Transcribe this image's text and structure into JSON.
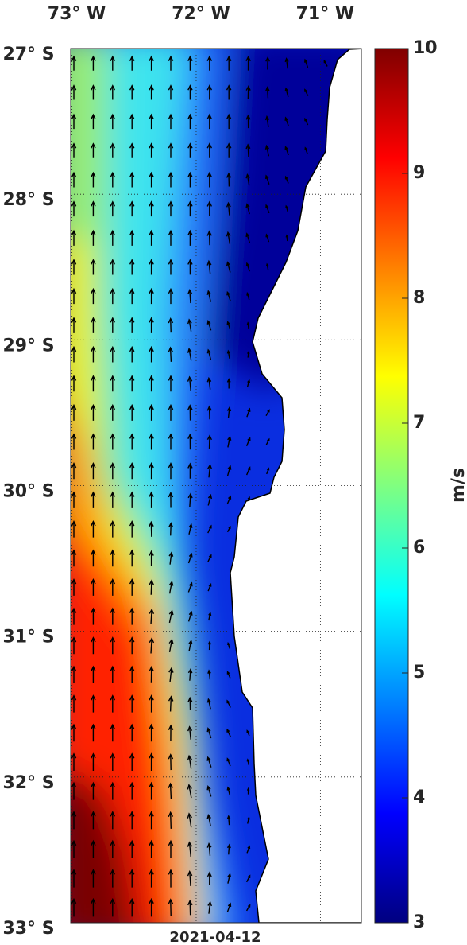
{
  "chart_data": {
    "type": "map",
    "xlim": [
      -73.01,
      -70.67
    ],
    "ylim": [
      -33,
      -27
    ],
    "xticks": [
      {
        "value": -73,
        "label": "73° W"
      },
      {
        "value": -72,
        "label": "72° W"
      },
      {
        "value": -71,
        "label": "71° W"
      }
    ],
    "yticks": [
      {
        "value": -27,
        "label": "27° S"
      },
      {
        "value": -28,
        "label": "28° S"
      },
      {
        "value": -29,
        "label": "29° S"
      },
      {
        "value": -30,
        "label": "30° S"
      },
      {
        "value": -31,
        "label": "31° S"
      },
      {
        "value": -32,
        "label": "32° S"
      },
      {
        "value": -33,
        "label": "33° S"
      }
    ],
    "grid": true,
    "colorbar": {
      "label": "m/s",
      "lim": [
        3,
        10
      ],
      "ticks": [
        3,
        4,
        5,
        6,
        7,
        8,
        9,
        10
      ],
      "colormap": "jet"
    },
    "date": "2021-04-12"
  }
}
